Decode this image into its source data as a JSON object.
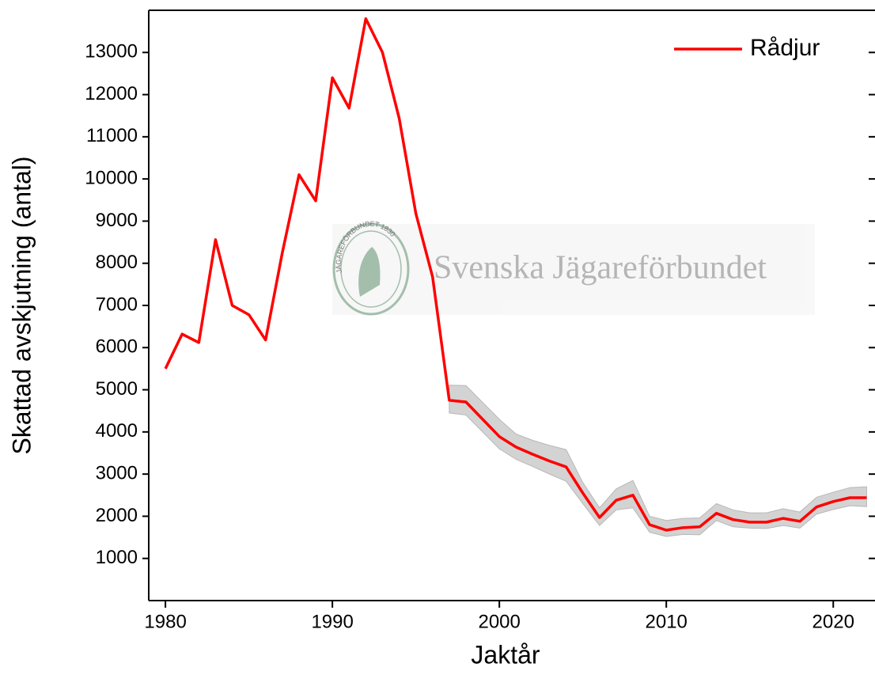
{
  "chart_data": {
    "type": "line",
    "xlabel": "Jaktår",
    "ylabel": "Skattad avskjutning (antal)",
    "watermark": "Svenska Jägareförbundet",
    "watermark_logo": "JÄGAREFÖRBUNDET 1830",
    "x": [
      1980,
      1981,
      1982,
      1983,
      1984,
      1985,
      1986,
      1987,
      1988,
      1989,
      1990,
      1991,
      1992,
      1993,
      1994,
      1995,
      1996,
      1997,
      1998,
      1999,
      2000,
      2001,
      2002,
      2003,
      2004,
      2005,
      2006,
      2007,
      2008,
      2009,
      2010,
      2011,
      2012,
      2013,
      2014,
      2015,
      2016,
      2017,
      2018,
      2019,
      2020,
      2021,
      2022
    ],
    "series": [
      {
        "name": "Rådjur",
        "color": "#ff0000",
        "values": [
          5500,
          6320,
          6120,
          8560,
          7000,
          6780,
          6180,
          8250,
          10100,
          9480,
          12400,
          11680,
          13800,
          13000,
          11440,
          9180,
          7680,
          4750,
          4710,
          4300,
          3890,
          3640,
          3470,
          3310,
          3170,
          2550,
          1970,
          2380,
          2500,
          1800,
          1670,
          1730,
          1750,
          2070,
          1920,
          1860,
          1860,
          1950,
          1880,
          2220,
          2350,
          2440,
          2440
        ]
      }
    ],
    "band": {
      "color": "#d3d3d3",
      "upper": [
        null,
        null,
        null,
        null,
        null,
        null,
        null,
        null,
        null,
        null,
        null,
        null,
        null,
        null,
        null,
        null,
        null,
        5110,
        5100,
        4700,
        4300,
        3950,
        3800,
        3680,
        3580,
        2800,
        2200,
        2650,
        2850,
        2000,
        1900,
        1950,
        1960,
        2300,
        2150,
        2080,
        2080,
        2180,
        2100,
        2450,
        2570,
        2680,
        2700
      ],
      "lower": [
        null,
        null,
        null,
        null,
        null,
        null,
        null,
        null,
        null,
        null,
        null,
        null,
        null,
        null,
        null,
        null,
        null,
        4450,
        4400,
        4000,
        3600,
        3350,
        3180,
        3000,
        2830,
        2300,
        1780,
        2150,
        2200,
        1620,
        1520,
        1570,
        1560,
        1900,
        1750,
        1720,
        1710,
        1780,
        1720,
        2050,
        2160,
        2250,
        2230
      ]
    },
    "xlim": [
      1979,
      2022.5
    ],
    "ylim": [
      0,
      14000
    ],
    "xticks": [
      1980,
      1990,
      2000,
      2010,
      2020
    ],
    "yticks": [
      1000,
      2000,
      3000,
      4000,
      5000,
      6000,
      7000,
      8000,
      9000,
      10000,
      11000,
      12000,
      13000
    ],
    "legend": "upper right"
  }
}
